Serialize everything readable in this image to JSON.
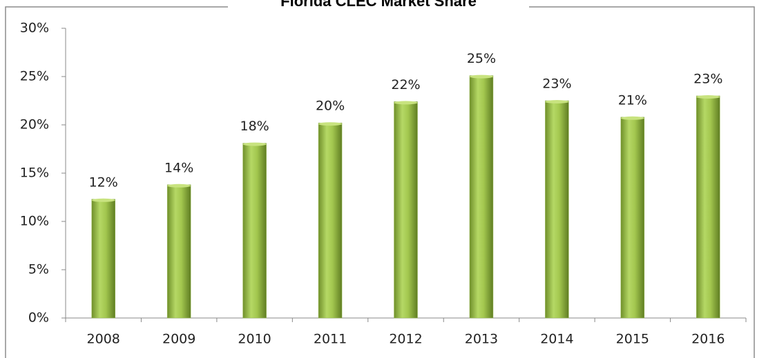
{
  "chart_data": {
    "type": "bar",
    "title": "Florida CLEC Market Share",
    "categories": [
      "2008",
      "2009",
      "2010",
      "2011",
      "2012",
      "2013",
      "2014",
      "2015",
      "2016"
    ],
    "values": [
      12.3,
      13.8,
      18.1,
      20.2,
      22.4,
      25.1,
      22.5,
      20.8,
      23.0
    ],
    "value_labels": [
      "12%",
      "14%",
      "18%",
      "20%",
      "22%",
      "25%",
      "23%",
      "21%",
      "23%"
    ],
    "color": "#9bbb59",
    "ylim": [
      0,
      30
    ],
    "yticks": [
      {
        "value": 0,
        "label": "0%"
      },
      {
        "value": 5,
        "label": "5%"
      },
      {
        "value": 10,
        "label": "10%"
      },
      {
        "value": 15,
        "label": "15%"
      },
      {
        "value": 20,
        "label": "20%"
      },
      {
        "value": 25,
        "label": "25%"
      },
      {
        "value": 30,
        "label": "30%"
      }
    ],
    "grid": false
  }
}
